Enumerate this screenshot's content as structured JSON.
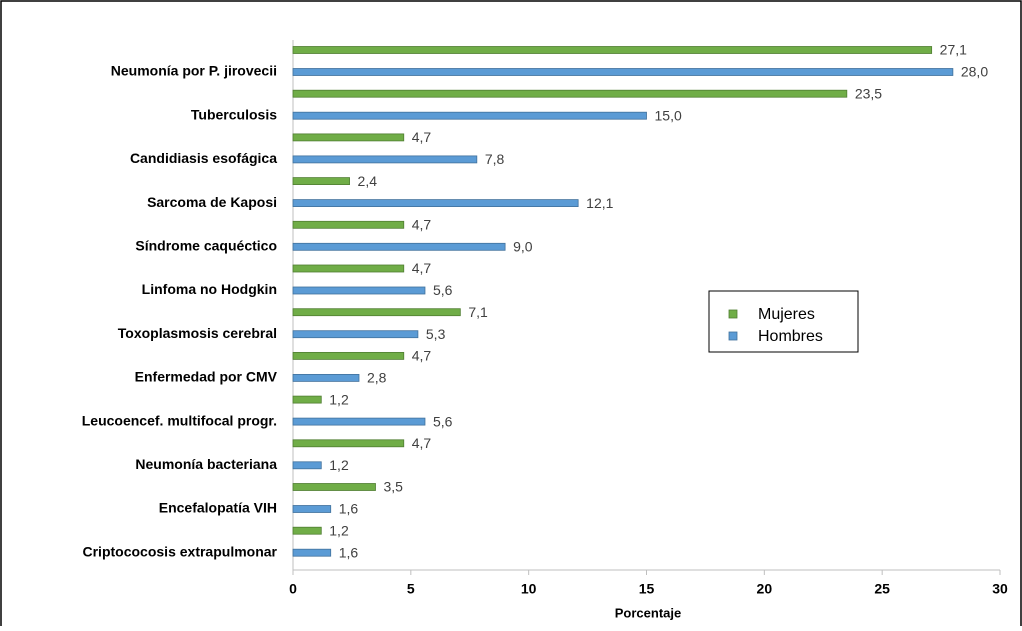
{
  "chart_data": {
    "type": "bar",
    "orientation": "horizontal",
    "x_label": "Porcentaje",
    "categories": [
      "Neumonía por P. jirovecii",
      "Tuberculosis",
      "Candidiasis esofágica",
      "Sarcoma de Kaposi",
      "Síndrome caquéctico",
      "Linfoma no Hodgkin",
      "Toxoplasmosis cerebral",
      "Enfermedad por CMV",
      "Leucoencef. multifocal progr.",
      "Neumonía bacteriana",
      "Encefalopatía VIH",
      "Criptococosis extrapulmonar"
    ],
    "series": [
      {
        "name": "Mujeres",
        "color": "#70ad47",
        "values": [
          27.1,
          23.5,
          4.7,
          2.4,
          4.7,
          4.7,
          7.1,
          4.7,
          1.2,
          4.7,
          3.5,
          1.2
        ],
        "value_labels": [
          "27,1",
          "23,5",
          "4,7",
          "2,4",
          "4,7",
          "4,7",
          "7,1",
          "4,7",
          "1,2",
          "4,7",
          "3,5",
          "1,2"
        ]
      },
      {
        "name": "Hombres",
        "color": "#5b9bd5",
        "values": [
          28.0,
          15.0,
          7.8,
          12.1,
          9.0,
          5.6,
          5.3,
          2.8,
          5.6,
          1.2,
          1.6,
          1.6
        ],
        "value_labels": [
          "28,0",
          "15,0",
          "7,8",
          "12,1",
          "9,0",
          "5,6",
          "5,3",
          "2,8",
          "5,6",
          "1,2",
          "1,6",
          "1,6"
        ]
      }
    ],
    "xlim": [
      0,
      30
    ],
    "xticks": [
      0,
      5,
      10,
      15,
      20,
      25,
      30
    ],
    "grid": false
  }
}
